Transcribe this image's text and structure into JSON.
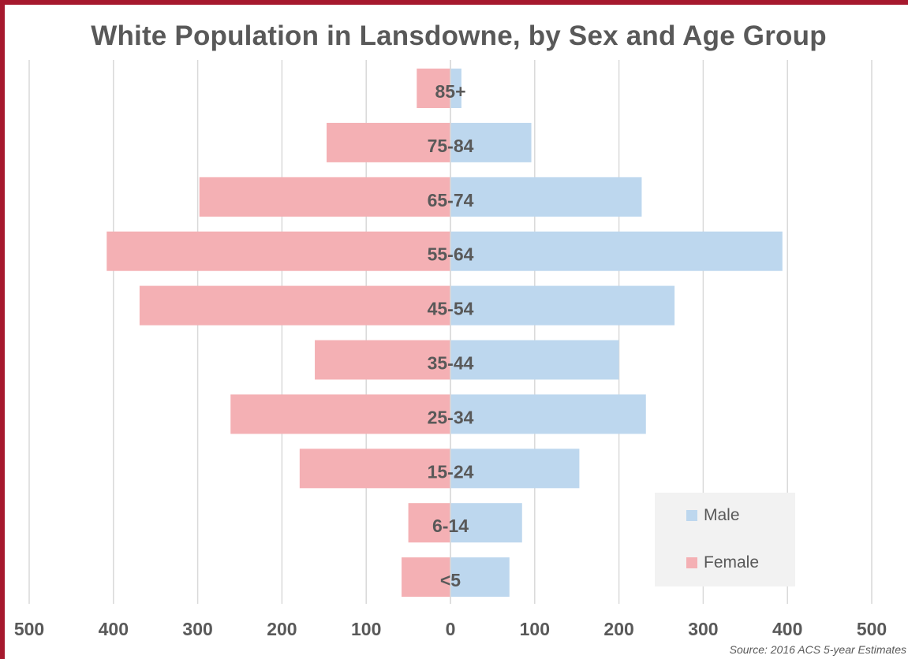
{
  "chart_data": {
    "type": "bar",
    "orientation": "horizontal",
    "title": "White Population in Lansdowne, by Sex and Age Group",
    "source": "Source: 2016 ACS 5-year Estimates",
    "categories": [
      "85+",
      "75-84",
      "65-74",
      "55-64",
      "45-54",
      "35-44",
      "25-34",
      "15-24",
      "6-14",
      "<5"
    ],
    "series": [
      {
        "name": "Male",
        "color": "#BDD7EE",
        "values": [
          13,
          96,
          227,
          394,
          266,
          200,
          232,
          153,
          85,
          70
        ]
      },
      {
        "name": "Female",
        "color": "#F4B0B4",
        "values": [
          40,
          147,
          298,
          408,
          369,
          161,
          261,
          179,
          50,
          58
        ]
      }
    ],
    "xlim": [
      -500,
      500
    ],
    "xticks": [
      {
        "value": -500,
        "label": "500"
      },
      {
        "value": -400,
        "label": "400"
      },
      {
        "value": -300,
        "label": "300"
      },
      {
        "value": -200,
        "label": "200"
      },
      {
        "value": -100,
        "label": "100"
      },
      {
        "value": 0,
        "label": "0"
      },
      {
        "value": 100,
        "label": "100"
      },
      {
        "value": 200,
        "label": "200"
      },
      {
        "value": 300,
        "label": "300"
      },
      {
        "value": 400,
        "label": "400"
      },
      {
        "value": 500,
        "label": "500"
      }
    ],
    "grid": true,
    "legend_position": "bottom-right"
  },
  "colors": {
    "frame": "#A6192E",
    "text": "#595959",
    "grid": "#D9D9D9",
    "legend_bg": "#F2F2F2"
  }
}
